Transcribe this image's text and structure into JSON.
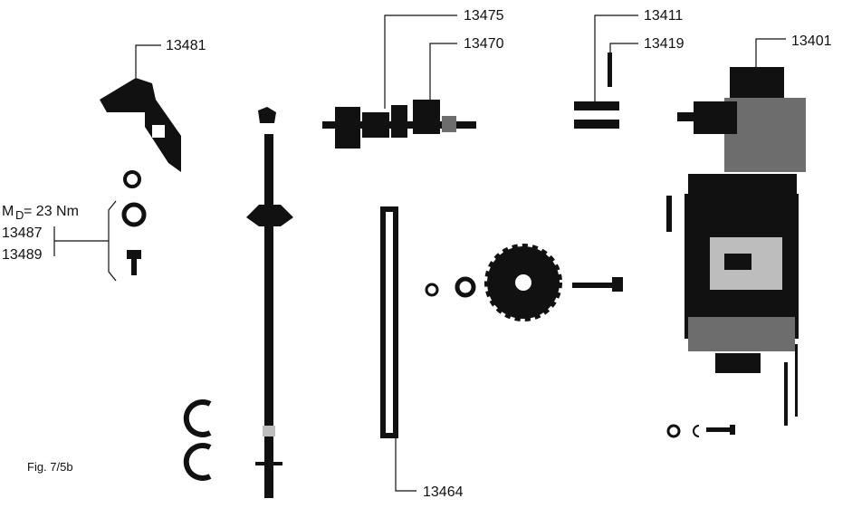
{
  "labels": {
    "p13481": "13481",
    "p13475": "13475",
    "p13470": "13470",
    "p13411": "13411",
    "p13419": "13419",
    "p13401": "13401",
    "p13487": "13487",
    "p13489": "13489",
    "p13464": "13464",
    "torque_m": "M",
    "torque_sub": "D",
    "torque_val": " = 23 Nm",
    "figure": "Fig. 7/5b"
  }
}
